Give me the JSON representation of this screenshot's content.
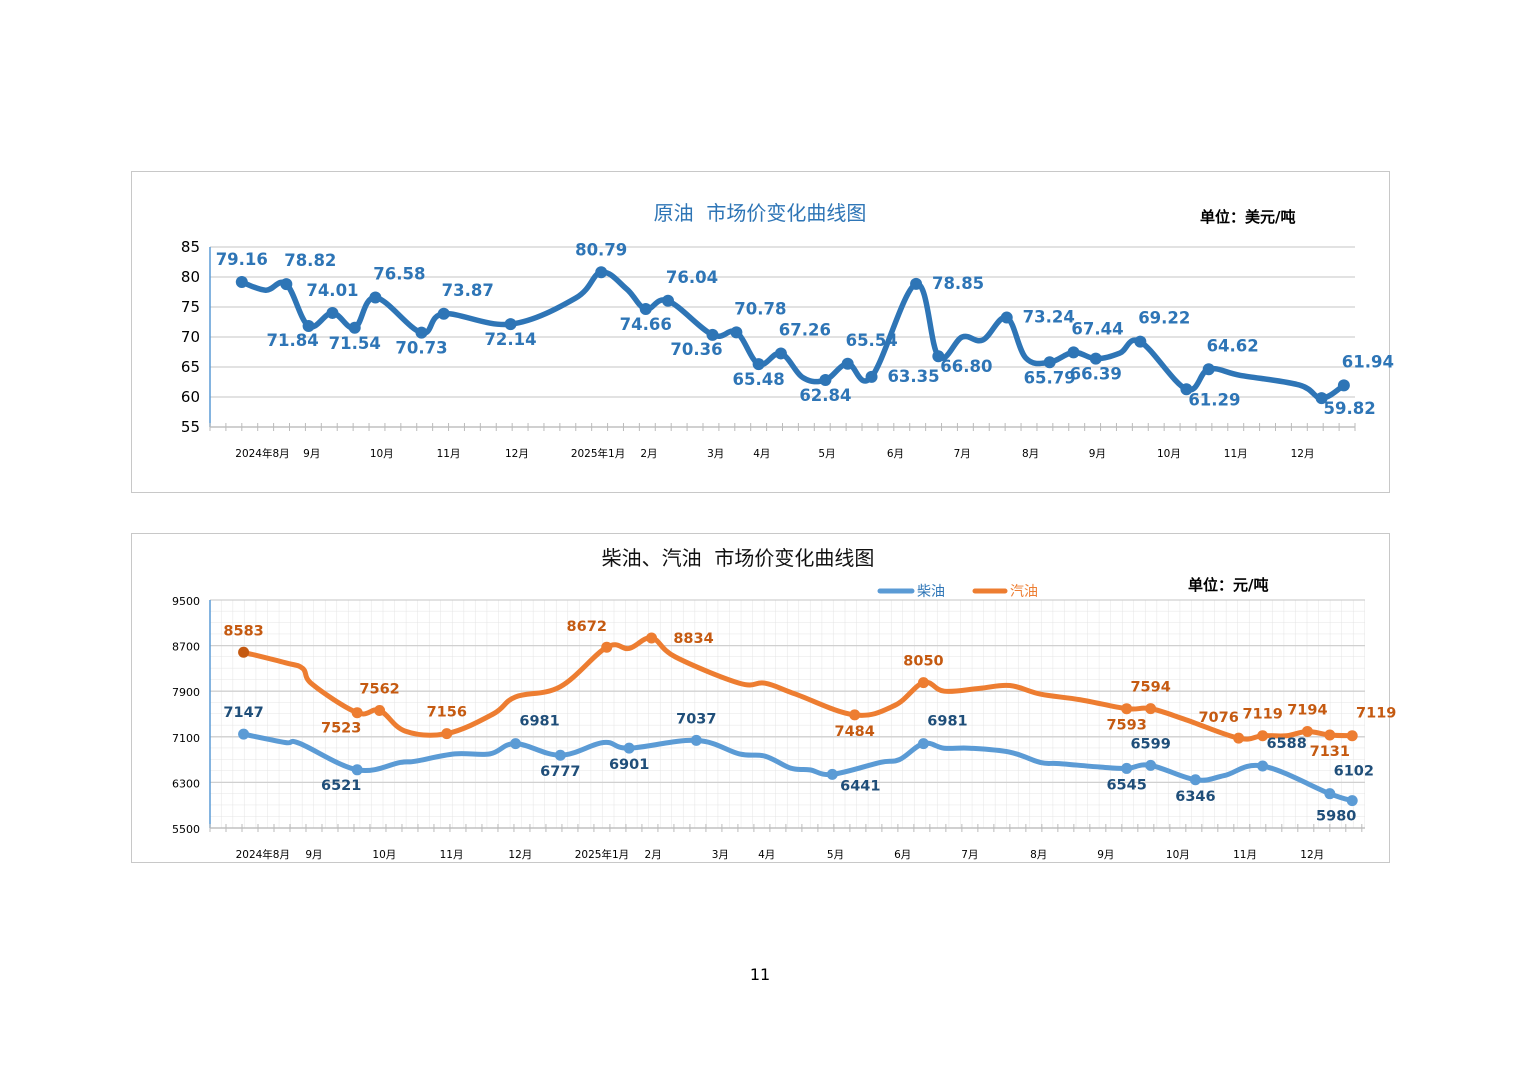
{
  "page_number": "11",
  "chart_data": [
    {
      "type": "line",
      "title": "原油  市场价变化曲线图",
      "unit": "单位：美元/吨",
      "xlabel": "",
      "ylabel": "",
      "xlim": [
        0,
        72
      ],
      "ylim": [
        55,
        85
      ],
      "yticks": [
        55,
        60,
        65,
        70,
        75,
        80,
        85
      ],
      "grid": true,
      "x_tick_labels": [
        {
          "x": 3.3,
          "label": "2024年8月"
        },
        {
          "x": 6.4,
          "label": "9月"
        },
        {
          "x": 10.8,
          "label": "10月"
        },
        {
          "x": 15.0,
          "label": "11月"
        },
        {
          "x": 19.3,
          "label": "12月"
        },
        {
          "x": 24.4,
          "label": "2025年1月"
        },
        {
          "x": 27.6,
          "label": "2月"
        },
        {
          "x": 31.8,
          "label": "3月"
        },
        {
          "x": 34.7,
          "label": "4月"
        },
        {
          "x": 38.8,
          "label": "5月"
        },
        {
          "x": 43.1,
          "label": "6月"
        },
        {
          "x": 47.3,
          "label": "7月"
        },
        {
          "x": 51.6,
          "label": "8月"
        },
        {
          "x": 55.8,
          "label": "9月"
        },
        {
          "x": 60.3,
          "label": "10月"
        },
        {
          "x": 64.5,
          "label": "11月"
        },
        {
          "x": 68.7,
          "label": "12月"
        }
      ],
      "series": [
        {
          "name": "原油",
          "color": "#2E75B6",
          "label_color": "#2E75B6",
          "points": [
            {
              "x": 2.0,
              "y": 79.16,
              "label": "79.16",
              "pos": "above"
            },
            {
              "x": 3.5,
              "y": 77.8
            },
            {
              "x": 4.8,
              "y": 78.82,
              "label": "78.82",
              "pos": "above-right"
            },
            {
              "x": 6.2,
              "y": 71.84,
              "label": "71.84",
              "pos": "below-left"
            },
            {
              "x": 7.7,
              "y": 74.01,
              "label": "74.01",
              "pos": "above"
            },
            {
              "x": 9.1,
              "y": 71.54,
              "label": "71.54",
              "pos": "below"
            },
            {
              "x": 10.4,
              "y": 76.58,
              "label": "76.58",
              "pos": "above-right"
            },
            {
              "x": 13.3,
              "y": 70.73,
              "label": "70.73",
              "pos": "below"
            },
            {
              "x": 14.7,
              "y": 73.87,
              "label": "73.87",
              "pos": "above-right"
            },
            {
              "x": 18.9,
              "y": 72.14,
              "label": "72.14",
              "pos": "below"
            },
            {
              "x": 23.0,
              "y": 76.5
            },
            {
              "x": 24.6,
              "y": 80.79,
              "label": "80.79",
              "pos": "above"
            },
            {
              "x": 26.2,
              "y": 78.0
            },
            {
              "x": 27.4,
              "y": 74.66,
              "label": "74.66",
              "pos": "below"
            },
            {
              "x": 28.8,
              "y": 76.04,
              "label": "76.04",
              "pos": "above-right"
            },
            {
              "x": 31.6,
              "y": 70.36,
              "label": "70.36",
              "pos": "below-left"
            },
            {
              "x": 33.1,
              "y": 70.78,
              "label": "70.78",
              "pos": "above-right"
            },
            {
              "x": 34.5,
              "y": 65.48,
              "label": "65.48",
              "pos": "below"
            },
            {
              "x": 35.9,
              "y": 67.26,
              "label": "67.26",
              "pos": "above-right"
            },
            {
              "x": 37.3,
              "y": 63.2
            },
            {
              "x": 38.7,
              "y": 62.84,
              "label": "62.84",
              "pos": "below"
            },
            {
              "x": 40.1,
              "y": 65.54,
              "label": "65.54",
              "pos": "above-right"
            },
            {
              "x": 41.6,
              "y": 63.35,
              "label": "63.35",
              "pos": "right"
            },
            {
              "x": 44.4,
              "y": 78.85,
              "label": "78.85",
              "pos": "right"
            },
            {
              "x": 45.8,
              "y": 66.8,
              "label": "66.80",
              "pos": "below-right"
            },
            {
              "x": 47.3,
              "y": 70.0
            },
            {
              "x": 48.6,
              "y": 69.5
            },
            {
              "x": 50.1,
              "y": 73.24,
              "label": "73.24",
              "pos": "right"
            },
            {
              "x": 51.3,
              "y": 66.5
            },
            {
              "x": 52.8,
              "y": 65.79,
              "label": "65.79",
              "pos": "below"
            },
            {
              "x": 54.3,
              "y": 67.44,
              "label": "67.44",
              "pos": "above-right"
            },
            {
              "x": 55.7,
              "y": 66.39,
              "label": "66.39",
              "pos": "below"
            },
            {
              "x": 57.2,
              "y": 67.3
            },
            {
              "x": 58.5,
              "y": 69.22,
              "label": "69.22",
              "pos": "above-right"
            },
            {
              "x": 61.4,
              "y": 61.29,
              "label": "61.29",
              "pos": "below-right"
            },
            {
              "x": 62.8,
              "y": 64.62,
              "label": "64.62",
              "pos": "above-right"
            },
            {
              "x": 64.8,
              "y": 63.6
            },
            {
              "x": 68.5,
              "y": 62.0
            },
            {
              "x": 69.9,
              "y": 59.82,
              "label": "59.82",
              "pos": "below-right"
            },
            {
              "x": 71.3,
              "y": 61.94,
              "label": "61.94",
              "pos": "above-right"
            }
          ]
        }
      ]
    },
    {
      "type": "line",
      "title": "柴油、汽油  市场价变化曲线图",
      "unit": "单位：元/吨",
      "xlabel": "",
      "ylabel": "",
      "xlim": [
        0,
        72.2
      ],
      "ylim": [
        5500,
        9500
      ],
      "yticks": [
        5500,
        6300,
        7100,
        7900,
        8700,
        9500
      ],
      "grid": true,
      "legend": "top-center",
      "x_tick_labels": [
        {
          "x": 3.3,
          "label": "2024年8月"
        },
        {
          "x": 6.5,
          "label": "9月"
        },
        {
          "x": 10.9,
          "label": "10月"
        },
        {
          "x": 15.1,
          "label": "11月"
        },
        {
          "x": 19.4,
          "label": "12月"
        },
        {
          "x": 24.5,
          "label": "2025年1月"
        },
        {
          "x": 27.7,
          "label": "2月"
        },
        {
          "x": 31.9,
          "label": "3月"
        },
        {
          "x": 34.8,
          "label": "4月"
        },
        {
          "x": 39.1,
          "label": "5月"
        },
        {
          "x": 43.3,
          "label": "6月"
        },
        {
          "x": 47.5,
          "label": "7月"
        },
        {
          "x": 51.8,
          "label": "8月"
        },
        {
          "x": 56.0,
          "label": "9月"
        },
        {
          "x": 60.5,
          "label": "10月"
        },
        {
          "x": 64.7,
          "label": "11月"
        },
        {
          "x": 68.9,
          "label": "12月"
        }
      ],
      "series": [
        {
          "name": "柴油",
          "color": "#5B9BD5",
          "label_color": "#1F4E79",
          "points": [
            {
              "x": 2.1,
              "y": 7147,
              "label": "7147",
              "pos": "above"
            },
            {
              "x": 4.7,
              "y": 7000
            },
            {
              "x": 5.6,
              "y": 6985
            },
            {
              "x": 9.2,
              "y": 6521,
              "label": "6521",
              "pos": "below-left"
            },
            {
              "x": 11.9,
              "y": 6650
            },
            {
              "x": 12.8,
              "y": 6670
            },
            {
              "x": 15.3,
              "y": 6800
            },
            {
              "x": 17.5,
              "y": 6800
            },
            {
              "x": 19.1,
              "y": 6981,
              "label": "6981",
              "pos": "above-right"
            },
            {
              "x": 21.9,
              "y": 6777,
              "label": "6777",
              "pos": "below"
            },
            {
              "x": 24.6,
              "y": 7000
            },
            {
              "x": 26.2,
              "y": 6901,
              "label": "6901",
              "pos": "below"
            },
            {
              "x": 30.4,
              "y": 7037,
              "label": "7037",
              "pos": "above"
            },
            {
              "x": 33.1,
              "y": 6800
            },
            {
              "x": 34.7,
              "y": 6760
            },
            {
              "x": 36.3,
              "y": 6550
            },
            {
              "x": 37.5,
              "y": 6520
            },
            {
              "x": 38.9,
              "y": 6441,
              "label": "6441",
              "pos": "below-right"
            },
            {
              "x": 41.9,
              "y": 6650
            },
            {
              "x": 43.1,
              "y": 6700
            },
            {
              "x": 44.6,
              "y": 6981,
              "label": "6981",
              "pos": "above-right"
            },
            {
              "x": 45.9,
              "y": 6900
            },
            {
              "x": 47.5,
              "y": 6900
            },
            {
              "x": 50.0,
              "y": 6830
            },
            {
              "x": 51.9,
              "y": 6650
            },
            {
              "x": 53.1,
              "y": 6630
            },
            {
              "x": 55.6,
              "y": 6570
            },
            {
              "x": 57.3,
              "y": 6545,
              "label": "6545",
              "pos": "below"
            },
            {
              "x": 58.8,
              "y": 6599,
              "label": "6599",
              "pos": "above"
            },
            {
              "x": 61.6,
              "y": 6346,
              "label": "6346",
              "pos": "below"
            },
            {
              "x": 63.4,
              "y": 6420
            },
            {
              "x": 65.8,
              "y": 6588,
              "label": "6588",
              "pos": "above-right"
            },
            {
              "x": 70.0,
              "y": 6102,
              "label": "6102",
              "pos": "above-right"
            },
            {
              "x": 71.4,
              "y": 5980,
              "label": "5980",
              "pos": "below-left"
            }
          ]
        },
        {
          "name": "汽油",
          "color": "#ED7D31",
          "label_color": "#C55A11",
          "first_marker_color": "#C55A11",
          "points": [
            {
              "x": 2.1,
              "y": 8583,
              "label": "8583",
              "pos": "above"
            },
            {
              "x": 4.7,
              "y": 8400
            },
            {
              "x": 5.8,
              "y": 8300
            },
            {
              "x": 6.4,
              "y": 8020
            },
            {
              "x": 9.2,
              "y": 7523,
              "label": "7523",
              "pos": "below-left"
            },
            {
              "x": 10.6,
              "y": 7562,
              "label": "7562",
              "pos": "above"
            },
            {
              "x": 12.2,
              "y": 7200
            },
            {
              "x": 14.8,
              "y": 7156,
              "label": "7156",
              "pos": "above"
            },
            {
              "x": 17.7,
              "y": 7500
            },
            {
              "x": 19.1,
              "y": 7800
            },
            {
              "x": 21.9,
              "y": 7980
            },
            {
              "x": 24.8,
              "y": 8672,
              "label": "8672",
              "pos": "above-left"
            },
            {
              "x": 26.2,
              "y": 8650
            },
            {
              "x": 27.6,
              "y": 8834,
              "label": "8834",
              "pos": "right"
            },
            {
              "x": 29.1,
              "y": 8500
            },
            {
              "x": 33.1,
              "y": 8040
            },
            {
              "x": 34.7,
              "y": 8040
            },
            {
              "x": 36.6,
              "y": 7850
            },
            {
              "x": 40.3,
              "y": 7484,
              "label": "7484",
              "pos": "below"
            },
            {
              "x": 42.8,
              "y": 7650
            },
            {
              "x": 44.6,
              "y": 8050,
              "label": "8050",
              "pos": "above"
            },
            {
              "x": 45.9,
              "y": 7900
            },
            {
              "x": 48.1,
              "y": 7950
            },
            {
              "x": 50.0,
              "y": 8000
            },
            {
              "x": 51.9,
              "y": 7850
            },
            {
              "x": 54.4,
              "y": 7750
            },
            {
              "x": 57.3,
              "y": 7593,
              "label": "7593",
              "pos": "below"
            },
            {
              "x": 58.8,
              "y": 7594,
              "label": "7594",
              "pos": "above"
            },
            {
              "x": 61.0,
              "y": 7400
            },
            {
              "x": 64.3,
              "y": 7076,
              "label": "7076",
              "pos": "above-left"
            },
            {
              "x": 65.8,
              "y": 7119,
              "label": "7119",
              "pos": "above"
            },
            {
              "x": 67.3,
              "y": 7119
            },
            {
              "x": 68.6,
              "y": 7194,
              "label": "7194",
              "pos": "above"
            },
            {
              "x": 70.0,
              "y": 7131,
              "label": "7131",
              "pos": "below"
            },
            {
              "x": 71.4,
              "y": 7119,
              "label": "7119",
              "pos": "above-right"
            }
          ]
        }
      ]
    }
  ]
}
